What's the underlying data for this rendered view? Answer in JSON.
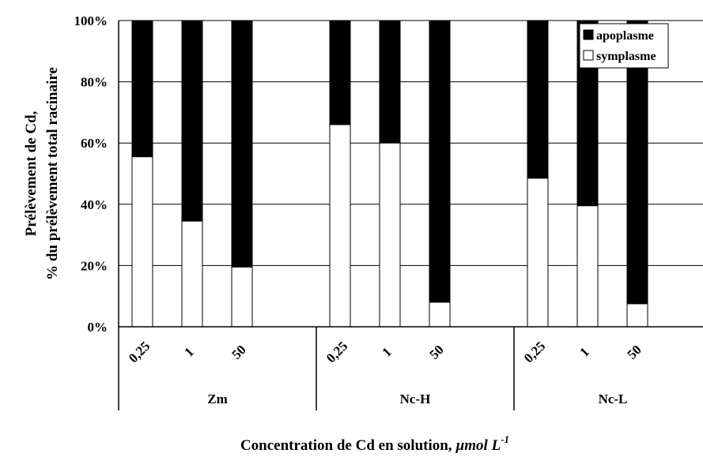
{
  "chart_data": {
    "type": "bar",
    "stacked": true,
    "percent_stacked": true,
    "groups": [
      {
        "label": "Zm",
        "categories": [
          "0,25",
          "1",
          "50"
        ]
      },
      {
        "label": "Nc-H",
        "categories": [
          "0,25",
          "1",
          "50"
        ]
      },
      {
        "label": "Nc-L",
        "categories": [
          "0,25",
          "1",
          "50"
        ]
      }
    ],
    "series": [
      {
        "name": "symplasme",
        "color": "#ffffff",
        "values": [
          55.5,
          34.5,
          19.5,
          66,
          60,
          8,
          48.5,
          39.5,
          7.5
        ]
      },
      {
        "name": "apoplasme",
        "color": "#000000",
        "values": [
          44.5,
          65.5,
          80.5,
          34,
          40,
          92,
          51.5,
          60.5,
          92.5
        ]
      }
    ],
    "legend_order": [
      "apoplasme",
      "symplasme"
    ],
    "legend_position": "top-right",
    "ylim": [
      0,
      100
    ],
    "yticks": [
      "0%",
      "20%",
      "40%",
      "60%",
      "80%",
      "100%"
    ],
    "ylabel_line1": "Prélèvement de Cd,",
    "ylabel_line2": "% du prélèvement total racinaire",
    "xlabel_main": "Concentration de Cd en solution, ",
    "xlabel_unit": "µmol L",
    "xlabel_exp": "-1",
    "grid": true
  }
}
